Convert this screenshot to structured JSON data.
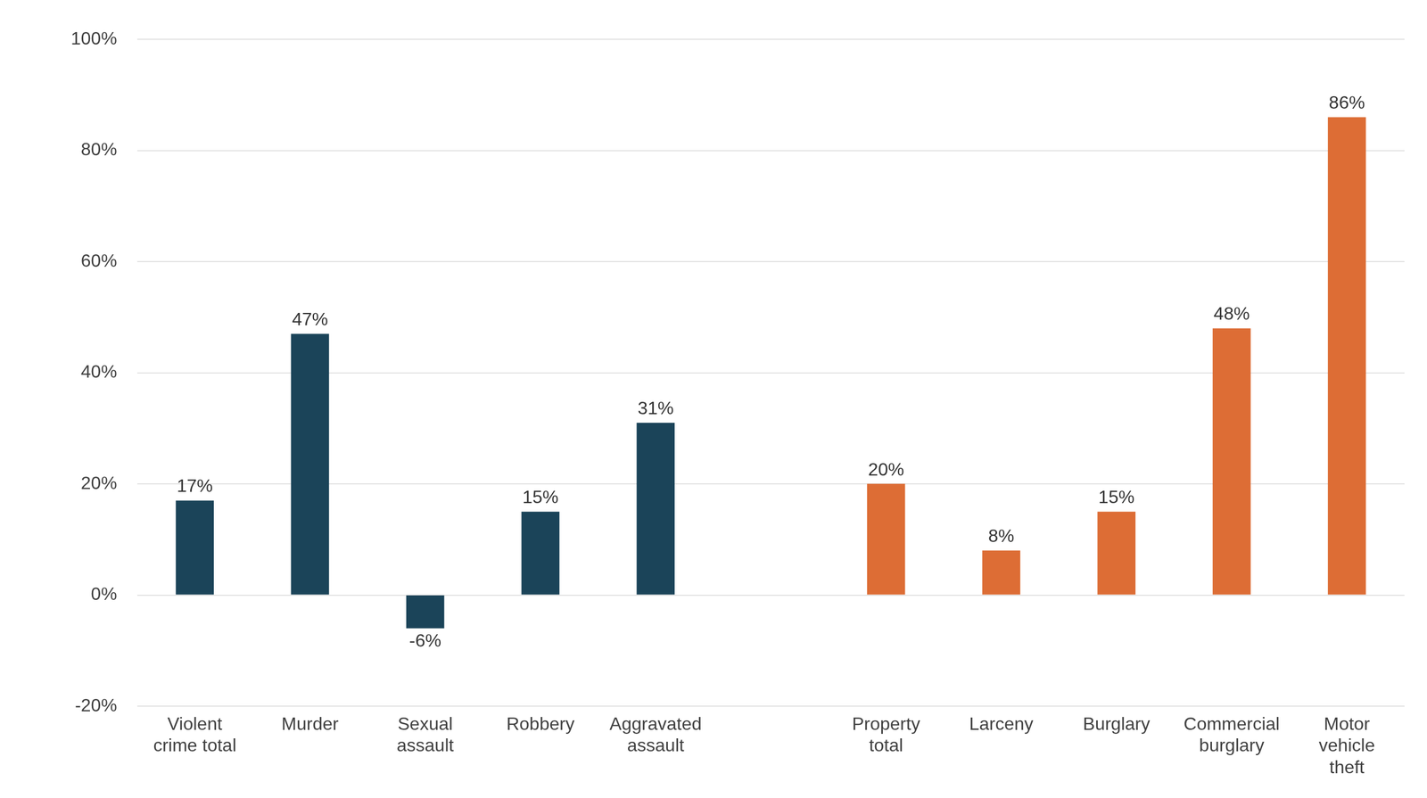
{
  "chart_data": {
    "type": "bar",
    "categories": [
      "Violent crime total",
      "Murder",
      "Sexual assault",
      "Robbery",
      "Aggravated assault",
      null,
      "Property total",
      "Larceny",
      "Burglary",
      "Commercial burglary",
      "Motor vehicle theft"
    ],
    "values": [
      17,
      47,
      -6,
      15,
      31,
      null,
      20,
      8,
      15,
      48,
      86
    ],
    "value_labels": [
      "17%",
      "47%",
      "-6%",
      "15%",
      "31%",
      null,
      "20%",
      "8%",
      "15%",
      "48%",
      "86%"
    ],
    "colors": [
      "#1b4459",
      "#1b4459",
      "#1b4459",
      "#1b4459",
      "#1b4459",
      null,
      "#dd6d35",
      "#dd6d35",
      "#dd6d35",
      "#dd6d35",
      "#dd6d35"
    ],
    "ylim": [
      -20,
      100
    ],
    "yticks": [
      {
        "value": -20,
        "label": "-20%"
      },
      {
        "value": 0,
        "label": "0%"
      },
      {
        "value": 20,
        "label": "20%"
      },
      {
        "value": 40,
        "label": "40%"
      },
      {
        "value": 60,
        "label": "60%"
      },
      {
        "value": 80,
        "label": "80%"
      },
      {
        "value": 100,
        "label": "100%"
      }
    ],
    "grid": true,
    "data_labels": true
  }
}
